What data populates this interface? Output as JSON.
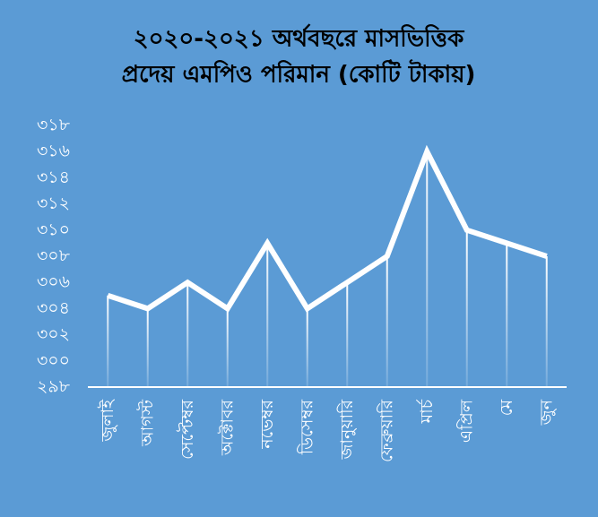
{
  "chart_data": {
    "type": "line",
    "title": [
      "২০২০-২০২১ অর্থবছরে মাসভিত্তিক",
      "প্রদেয় এমপিও পরিমান (কোটি টাকায়)"
    ],
    "categories": [
      "জুলাই",
      "আগস্ট",
      "সেপ্টেম্বর",
      "অক্টোবর",
      "নভেম্বর",
      "ডিসেম্বর",
      "জানুয়ারি",
      "ফেব্রুয়ারি",
      "মার্চ",
      "এপ্রিল",
      "মে",
      "জুন"
    ],
    "values": [
      305,
      304,
      306,
      304,
      309,
      304,
      306,
      308,
      316,
      310,
      309,
      308
    ],
    "color": "#ffffff",
    "ylim": [
      298,
      318
    ],
    "yticks": [
      {
        "value": 298,
        "label": "২৯৮"
      },
      {
        "value": 300,
        "label": "৩০০"
      },
      {
        "value": 302,
        "label": "৩০২"
      },
      {
        "value": 304,
        "label": "৩০৪"
      },
      {
        "value": 306,
        "label": "৩০৬"
      },
      {
        "value": 308,
        "label": "৩০৮"
      },
      {
        "value": 310,
        "label": "৩১০"
      },
      {
        "value": 312,
        "label": "৩১২"
      },
      {
        "value": 314,
        "label": "৩১৪"
      },
      {
        "value": 316,
        "label": "৩১৬"
      },
      {
        "value": 318,
        "label": "৩১৮"
      }
    ],
    "grid": false
  }
}
